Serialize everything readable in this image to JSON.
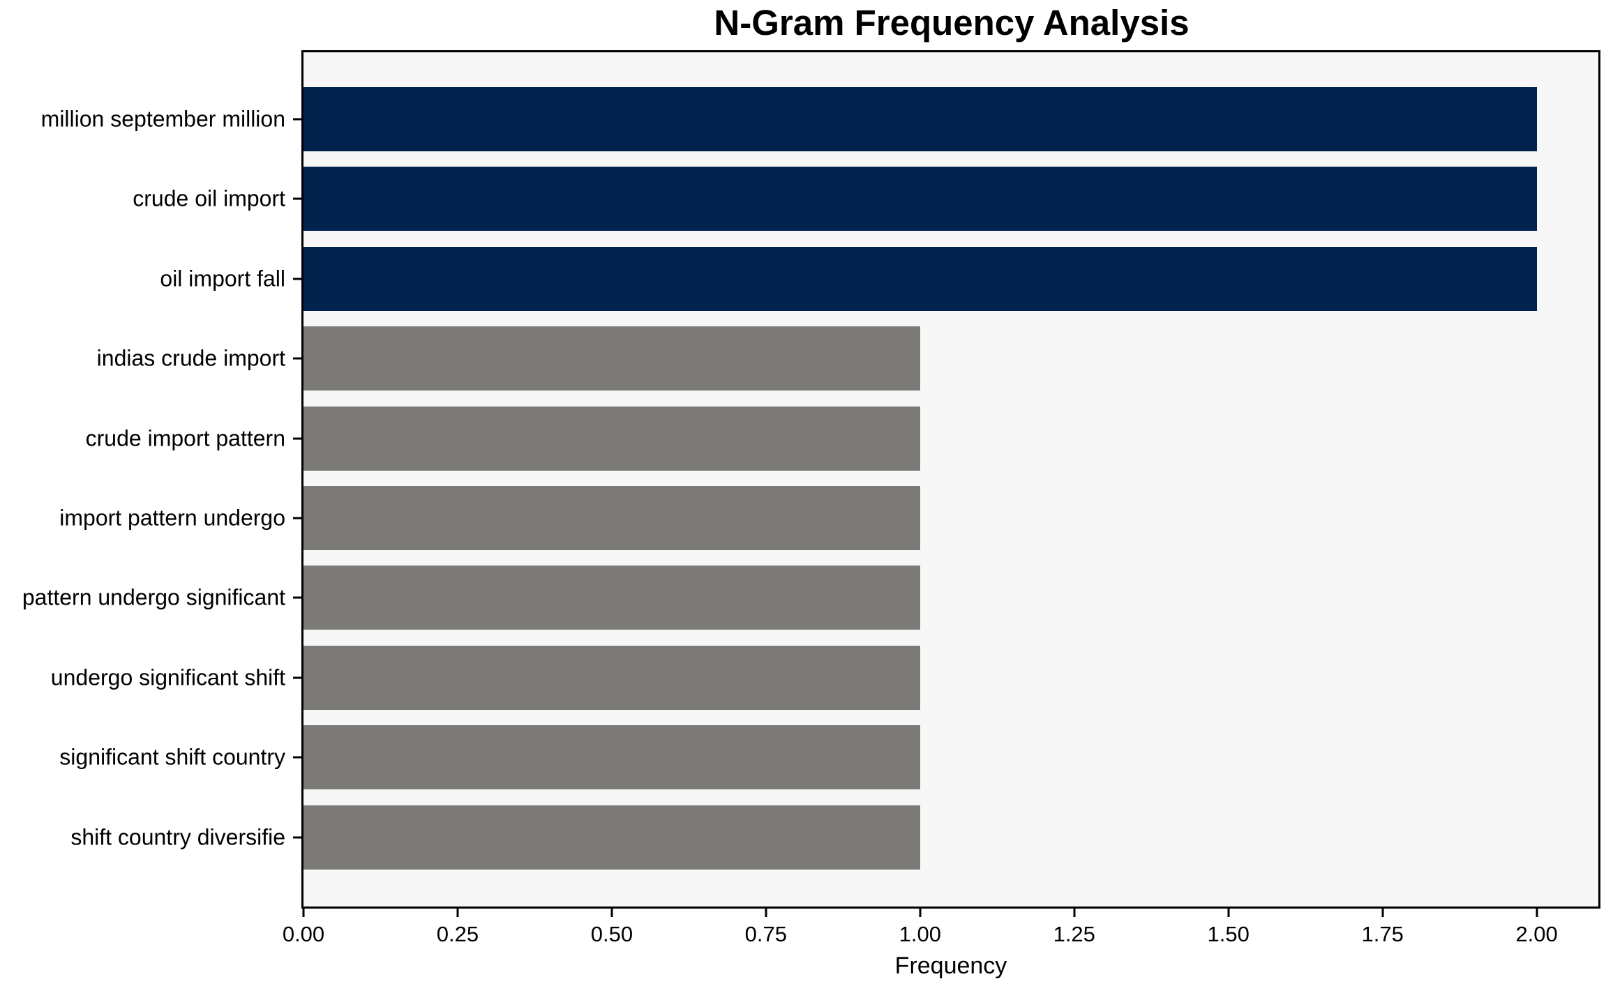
{
  "chart_data": {
    "type": "bar",
    "orientation": "horizontal",
    "title": "N-Gram Frequency Analysis",
    "xlabel": "Frequency",
    "ylabel": "",
    "categories": [
      "million september million",
      "crude oil import",
      "oil import fall",
      "indias crude import",
      "crude import pattern",
      "import pattern undergo",
      "pattern undergo significant",
      "undergo significant shift",
      "significant shift country",
      "shift country diversifie"
    ],
    "values": [
      2,
      2,
      2,
      1,
      1,
      1,
      1,
      1,
      1,
      1
    ],
    "bar_colors": [
      "#02224e",
      "#02224e",
      "#02224e",
      "#7b7a77",
      "#7b7a77",
      "#7b7a77",
      "#7b7a77",
      "#7b7a77",
      "#7b7a77",
      "#7b7a77"
    ],
    "highlight_color": "#02224e",
    "base_color": "#7b7a77",
    "plot_background": "#f7f7f7",
    "axis_color": "#000000",
    "xlim": [
      0,
      2.1
    ],
    "xticks": [
      {
        "value": 0.0,
        "label": "0.00"
      },
      {
        "value": 0.25,
        "label": "0.25"
      },
      {
        "value": 0.5,
        "label": "0.50"
      },
      {
        "value": 0.75,
        "label": "0.75"
      },
      {
        "value": 1.0,
        "label": "1.00"
      },
      {
        "value": 1.25,
        "label": "1.25"
      },
      {
        "value": 1.5,
        "label": "1.50"
      },
      {
        "value": 1.75,
        "label": "1.75"
      },
      {
        "value": 2.0,
        "label": "2.00"
      }
    ],
    "grid": false,
    "legend": null
  }
}
